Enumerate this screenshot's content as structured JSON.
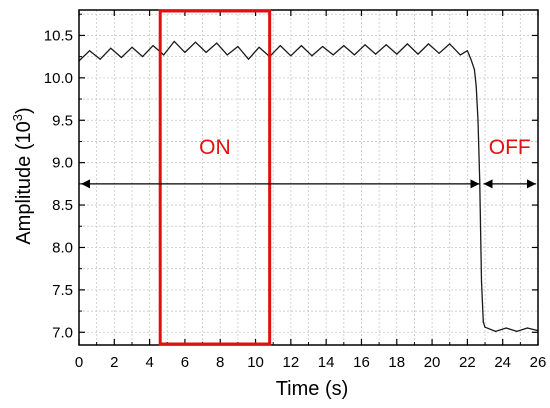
{
  "chart_data": {
    "type": "line",
    "xlabel": "Time (s)",
    "ylabel_main": "Amplitude (10",
    "ylabel_sup": "3",
    "ylabel_close": ")",
    "xlim": [
      0,
      26
    ],
    "ylim": [
      6.85,
      10.8
    ],
    "x_ticks": [
      "0",
      "2",
      "4",
      "6",
      "8",
      "10",
      "12",
      "14",
      "16",
      "18",
      "20",
      "22",
      "24",
      "26"
    ],
    "y_ticks": [
      "7.0",
      "7.5",
      "8.0",
      "8.5",
      "9.0",
      "9.5",
      "10.0",
      "10.5"
    ],
    "grid": true,
    "series_color": "#1a1a1a",
    "series": [
      {
        "x": [
          0,
          0.6,
          1.2,
          1.8,
          2.4,
          3,
          3.6,
          4.2,
          4.8,
          5.4,
          6,
          6.6,
          7.2,
          7.8,
          8.4,
          9,
          9.6,
          10.2,
          10.8,
          11.4,
          12,
          12.6,
          13.2,
          13.8,
          14.4,
          15,
          15.6,
          16.2,
          16.8,
          17.4,
          18,
          18.6,
          19.2,
          19.8,
          20.4,
          21,
          21.6,
          22,
          22.2,
          22.4,
          22.5,
          22.6,
          22.7,
          22.8,
          22.9,
          23,
          23.6,
          24.2,
          24.8,
          25.4,
          26
        ],
        "y": [
          10.2,
          10.32,
          10.22,
          10.35,
          10.24,
          10.36,
          10.25,
          10.38,
          10.27,
          10.43,
          10.3,
          10.42,
          10.3,
          10.41,
          10.27,
          10.37,
          10.22,
          10.36,
          10.25,
          10.38,
          10.26,
          10.38,
          10.26,
          10.37,
          10.27,
          10.38,
          10.27,
          10.39,
          10.28,
          10.39,
          10.28,
          10.4,
          10.28,
          10.4,
          10.29,
          10.4,
          10.27,
          10.32,
          10.22,
          10.1,
          9.9,
          9.5,
          8.8,
          7.6,
          7.12,
          7.06,
          7.01,
          7.05,
          7.01,
          7.05,
          7.02
        ]
      }
    ],
    "highlight": {
      "x_start": 4.6,
      "x_end": 10.8,
      "label": "ON",
      "color": "#e01010"
    },
    "spans": [
      {
        "x1": 0,
        "x2": 22.8,
        "y": 8.75
      },
      {
        "x1": 22.8,
        "x2": 26,
        "y": 8.75
      }
    ],
    "off_label": "OFF",
    "off_label_x": 24.4,
    "label_y": 9.1
  }
}
